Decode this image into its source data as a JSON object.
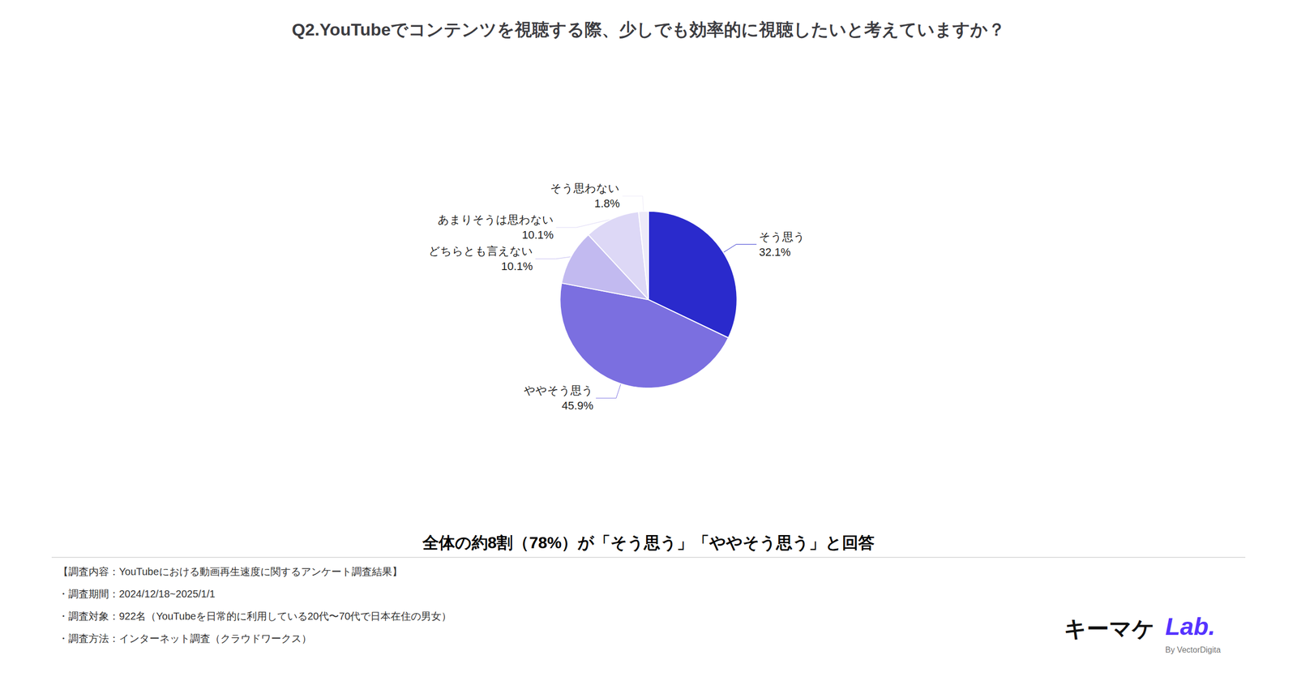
{
  "chart_data": {
    "type": "pie",
    "title": "Q2.YouTubeでコンテンツを視聴する際、少しでも効率的に視聴したいと考えていますか？",
    "categories": [
      "そう思う",
      "ややそう思う",
      "どちらとも言えない",
      "あまりそうは思わない",
      "そう思わない"
    ],
    "values": [
      32.1,
      45.9,
      10.1,
      10.1,
      1.8
    ],
    "value_labels": [
      "32.1%",
      "45.9%",
      "10.1%",
      "10.1%",
      "1.8%"
    ],
    "colors": [
      "#2A2ACC",
      "#7B6FE0",
      "#C2BAF0",
      "#DDD8F6",
      "#EDEAF9"
    ],
    "data_labels": true,
    "legend": false,
    "annotations": [
      "全体の約8割（78%）が「そう思う」「ややそう思う」と回答",
      "【調査内容：YouTubeにおける動画再生速度に関するアンケート調査結果】",
      "・調査期間：2024/12/18~2025/1/1",
      "・調査対象：922名（YouTubeを日常的に利用している20代〜70代で日本在住の男女）",
      "・調査方法：インターネット調査（クラウドワークス）",
      "キーマケ",
      "Lab.",
      "By VectorDigita"
    ]
  }
}
